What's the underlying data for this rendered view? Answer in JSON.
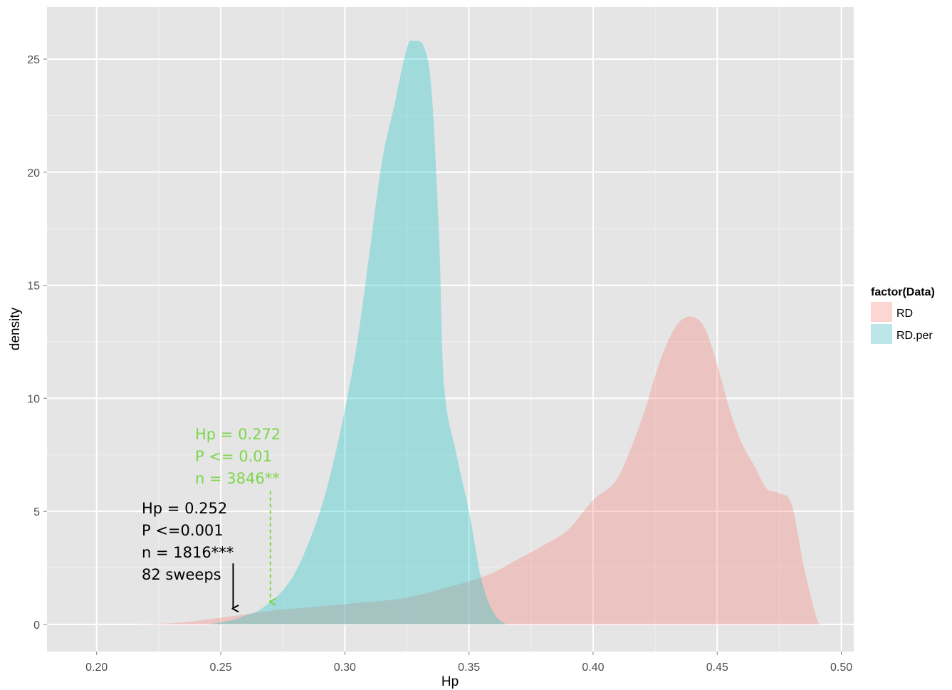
{
  "chart_data": {
    "type": "area",
    "subtype": "density",
    "xlabel": "Hp",
    "ylabel": "density",
    "xlim": [
      0.18,
      0.505
    ],
    "ylim": [
      -1.2,
      27.3
    ],
    "x_ticks": [
      0.2,
      0.25,
      0.3,
      0.35,
      0.4,
      0.45,
      0.5
    ],
    "x_tick_labels": [
      "0.20",
      "0.25",
      "0.30",
      "0.35",
      "0.40",
      "0.45",
      "0.50"
    ],
    "y_ticks": [
      0,
      5,
      10,
      15,
      20,
      25
    ],
    "y_tick_labels": [
      "0",
      "5",
      "10",
      "15",
      "20",
      "25"
    ],
    "grid": true,
    "legend": {
      "title": "factor(Data)",
      "position": "right"
    },
    "series": [
      {
        "name": "RD",
        "color": "#F8766D",
        "x": [
          0.215,
          0.23,
          0.24,
          0.25,
          0.26,
          0.27,
          0.28,
          0.29,
          0.3,
          0.31,
          0.32,
          0.33,
          0.34,
          0.35,
          0.36,
          0.37,
          0.38,
          0.39,
          0.4,
          0.41,
          0.42,
          0.425,
          0.43,
          0.435,
          0.44,
          0.445,
          0.45,
          0.455,
          0.46,
          0.465,
          0.47,
          0.475,
          0.48,
          0.485,
          0.49,
          0.492
        ],
        "y": [
          0,
          0.05,
          0.15,
          0.3,
          0.45,
          0.6,
          0.7,
          0.8,
          0.9,
          1.0,
          1.1,
          1.3,
          1.6,
          1.9,
          2.3,
          2.9,
          3.5,
          4.2,
          5.5,
          6.5,
          9.2,
          11.0,
          12.5,
          13.4,
          13.6,
          13.1,
          11.5,
          9.5,
          8.0,
          7.0,
          6.0,
          5.8,
          5.3,
          2.5,
          0.3,
          0
        ],
        "opacity": 0.3
      },
      {
        "name": "RD.per",
        "color": "#00BFC4",
        "x": [
          0.245,
          0.25,
          0.255,
          0.26,
          0.265,
          0.27,
          0.275,
          0.28,
          0.285,
          0.29,
          0.295,
          0.3,
          0.305,
          0.31,
          0.315,
          0.32,
          0.325,
          0.328,
          0.332,
          0.335,
          0.338,
          0.34,
          0.345,
          0.35,
          0.355,
          0.36,
          0.365
        ],
        "y": [
          0,
          0.1,
          0.2,
          0.4,
          0.6,
          1.0,
          1.5,
          2.3,
          3.5,
          5.0,
          7.0,
          9.5,
          12.5,
          16.5,
          20.5,
          23.0,
          25.5,
          25.8,
          25.5,
          23.5,
          17.0,
          10.5,
          7.5,
          5.0,
          2.0,
          0.5,
          0
        ],
        "opacity": 0.3
      }
    ],
    "annotations": [
      {
        "lines": [
          "Hp = 0.272",
          "P <= 0.01",
          "n = 3846**"
        ],
        "color": "#7dd64a",
        "arrow_x": 0.27,
        "arrow_from_y": 5.9,
        "arrow_to_y": 1.0,
        "arrow_style": "dashed"
      },
      {
        "lines": [
          "Hp = 0.252",
          "P <=0.001",
          "n = 1816***",
          "82 sweeps"
        ],
        "color": "#000000",
        "arrow_x": 0.255,
        "arrow_from_y": 2.7,
        "arrow_to_y": 0.7,
        "arrow_style": "solid"
      }
    ]
  }
}
